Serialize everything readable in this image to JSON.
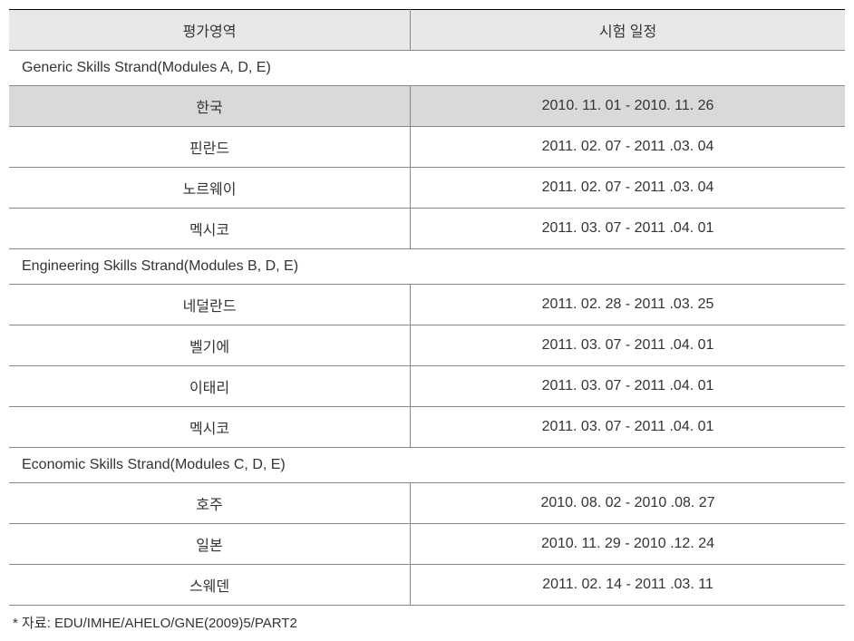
{
  "headers": {
    "area": "평가영역",
    "schedule": "시험 일정"
  },
  "sections": [
    {
      "title": "Generic Skills Strand(Modules A, D, E)",
      "rows": [
        {
          "country": "한국",
          "dates": "2010. 11. 01 - 2010. 11. 26",
          "highlight": true
        },
        {
          "country": "핀란드",
          "dates": "2011. 02. 07 - 2011 .03. 04",
          "highlight": false
        },
        {
          "country": "노르웨이",
          "dates": "2011. 02. 07 - 2011 .03. 04",
          "highlight": false
        },
        {
          "country": "멕시코",
          "dates": "2011. 03. 07 - 2011 .04. 01",
          "highlight": false
        }
      ]
    },
    {
      "title": "Engineering Skills Strand(Modules B, D, E)",
      "rows": [
        {
          "country": "네덜란드",
          "dates": "2011. 02. 28 - 2011 .03. 25",
          "highlight": false
        },
        {
          "country": "벨기에",
          "dates": "2011. 03. 07 - 2011 .04. 01",
          "highlight": false
        },
        {
          "country": "이태리",
          "dates": "2011. 03. 07 - 2011 .04. 01",
          "highlight": false
        },
        {
          "country": "멕시코",
          "dates": "2011. 03. 07 - 2011 .04. 01",
          "highlight": false
        }
      ]
    },
    {
      "title": "Economic Skills Strand(Modules C, D, E)",
      "rows": [
        {
          "country": "호주",
          "dates": "2010. 08. 02 - 2010 .08. 27",
          "highlight": false
        },
        {
          "country": "일본",
          "dates": "2010. 11. 29 - 2010 .12. 24",
          "highlight": false
        },
        {
          "country": "스웨덴",
          "dates": "2011. 02. 14 - 2011 .03. 11",
          "highlight": false
        }
      ]
    }
  ],
  "footnote": "* 자료: EDU/IMHE/AHELO/GNE(2009)5/PART2"
}
